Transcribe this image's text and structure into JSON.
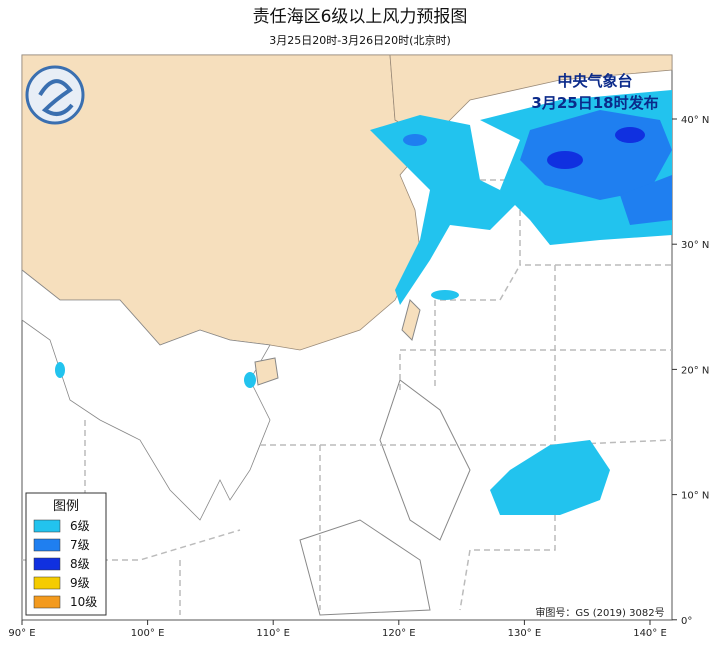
{
  "header": {
    "title": "责任海区6级以上风力预报图",
    "subtitle": "3月25日20时-3月26日20时(北京时)"
  },
  "issuer": {
    "name": "中央气象台",
    "time": "3月25日18时发布"
  },
  "legend": {
    "title": "图例",
    "items": [
      {
        "label": "6级",
        "color": "#22c3ee"
      },
      {
        "label": "7级",
        "color": "#1f7ff0"
      },
      {
        "label": "8级",
        "color": "#1030e0"
      },
      {
        "label": "9级",
        "color": "#f5cc00"
      },
      {
        "label": "10级",
        "color": "#f39a1e"
      }
    ]
  },
  "axes": {
    "lon_labels": [
      "90° E",
      "100° E",
      "110° E",
      "120° E",
      "130° E",
      "140° E"
    ],
    "lat_labels": [
      "40° N",
      "30° N",
      "20° N",
      "10° N",
      "0°"
    ]
  },
  "footer": {
    "approval": "审图号：GS (2019) 3082号"
  }
}
